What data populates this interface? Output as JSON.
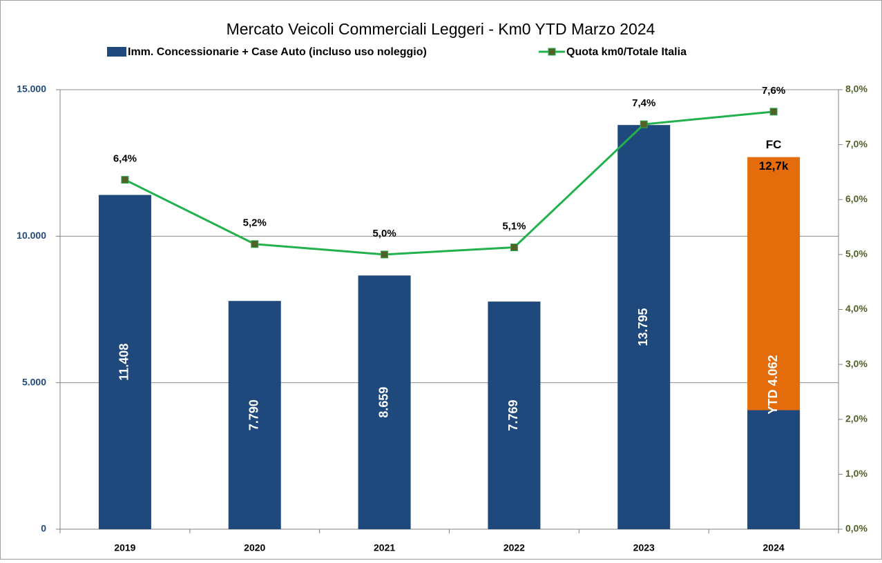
{
  "chart_data": {
    "type": "bar",
    "title": "Mercato Veicoli Commerciali Leggeri - Km0 YTD Marzo 2024",
    "categories": [
      "2019",
      "2020",
      "2021",
      "2022",
      "2023",
      "2024"
    ],
    "series": [
      {
        "name": "Imm. Concessionarie + Case Auto (incluso uso noleggio)",
        "color": "#1f497d",
        "values": [
          11408,
          7790,
          8659,
          7769,
          13795,
          4062
        ],
        "value_labels": [
          "11.408",
          "7.790",
          "8.659",
          "7.769",
          "13.795",
          "YTD 4.062"
        ]
      },
      {
        "type": "bar",
        "color": "#e46c0a",
        "values": [
          null,
          null,
          null,
          null,
          null,
          12700
        ],
        "value_labels": [
          null,
          null,
          null,
          null,
          null,
          "12,7k"
        ]
      },
      {
        "name": "Quota km0/Totale Italia",
        "type": "line",
        "axis": "y2",
        "color": "#22b14c",
        "marker_color": "#4f6228",
        "values": [
          6.36,
          5.19,
          5.0,
          5.13,
          7.37,
          7.6
        ],
        "value_labels": [
          "6,4%",
          "5,2%",
          "5,0%",
          "5,1%",
          "7,4%",
          "7,6%"
        ]
      }
    ],
    "annotation": "FC",
    "ylim": [
      0,
      15000
    ],
    "yticks": [
      0,
      {
        "value": 5000,
        "label": "5.000"
      },
      {
        "value": 10000,
        "label": "10.000"
      },
      {
        "value": 15000,
        "label": "15.000"
      }
    ],
    "y2lim": [
      0,
      8
    ],
    "y2ticks": [
      {
        "value": 0,
        "label": "0,0%"
      },
      {
        "value": 1,
        "label": "1,0%"
      },
      {
        "value": 2,
        "label": "2,0%"
      },
      {
        "value": 3,
        "label": "3,0%"
      },
      {
        "value": 4,
        "label": "4,0%"
      },
      {
        "value": 5,
        "label": "5,0%"
      },
      {
        "value": 6,
        "label": "6,0%"
      },
      {
        "value": 7,
        "label": "7,0%"
      },
      {
        "value": 8,
        "label": "8,0%"
      }
    ],
    "grid": true,
    "legend": "top"
  }
}
